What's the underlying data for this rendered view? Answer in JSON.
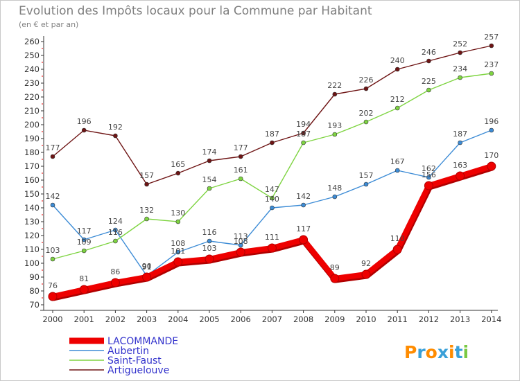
{
  "header": {
    "title": "Evolution des Impôts locaux pour la Commune par Habitant",
    "subtitle": "(en € et par an)"
  },
  "logo": {
    "text": "Proxiti",
    "letters": [
      {
        "ch": "P",
        "color": "#ff8c00"
      },
      {
        "ch": "r",
        "color": "#3aa0d8"
      },
      {
        "ch": "o",
        "color": "#ff8c00"
      },
      {
        "ch": "x",
        "color": "#3aa0d8"
      },
      {
        "ch": "i",
        "color": "#ff8c00"
      },
      {
        "ch": "t",
        "color": "#3aa0d8"
      },
      {
        "ch": "i",
        "color": "#7ac943"
      }
    ]
  },
  "chart_data": {
    "type": "line",
    "title": "Evolution des Impôts locaux pour la Commune par Habitant",
    "subtitle": "(en € et par an)",
    "xlabel": "",
    "ylabel": "",
    "x": [
      "2000",
      "2001",
      "2002",
      "2003",
      "2004",
      "2005",
      "2006",
      "2007",
      "2008",
      "2009",
      "2010",
      "2011",
      "2012",
      "2013",
      "2014"
    ],
    "ylim": [
      70,
      260
    ],
    "ytick_step": 10,
    "grid": false,
    "legend_position": "bottom-left",
    "series": [
      {
        "name": "LACOMMANDE",
        "color": "#ee0000",
        "emphasis": true,
        "values": [
          76,
          81,
          86,
          90,
          101,
          103,
          108,
          111,
          117,
          89,
          92,
          110,
          156,
          163,
          170
        ]
      },
      {
        "name": "Aubertin",
        "color": "#3d8cd6",
        "emphasis": false,
        "values": [
          142,
          117,
          124,
          91,
          108,
          116,
          113,
          140,
          142,
          148,
          157,
          167,
          162,
          187,
          196
        ]
      },
      {
        "name": "Saint-Faust",
        "color": "#7ed441",
        "emphasis": false,
        "values": [
          103,
          109,
          116,
          132,
          130,
          154,
          161,
          147,
          187,
          193,
          202,
          212,
          225,
          234,
          237
        ]
      },
      {
        "name": "Artiguelouve",
        "color": "#6e1414",
        "emphasis": false,
        "values": [
          177,
          196,
          192,
          157,
          165,
          174,
          177,
          187,
          194,
          222,
          226,
          240,
          246,
          252,
          257
        ]
      }
    ]
  }
}
